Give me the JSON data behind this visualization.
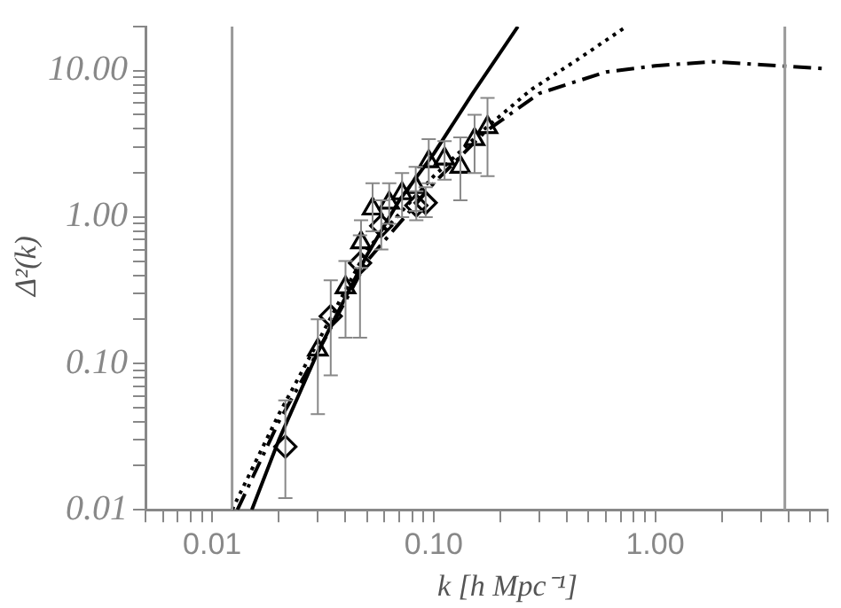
{
  "chart_data": {
    "type": "scatter",
    "xlabel": "k [h Mpc⁻¹]",
    "ylabel": "Δ²(k)",
    "log": "xy",
    "grid": false,
    "legend": false,
    "xlim": [
      0.005,
      6
    ],
    "ylim": [
      0.01,
      20
    ],
    "xticks": [
      {
        "value": 0.005,
        "label": null
      },
      {
        "value": 0.006,
        "label": null
      },
      {
        "value": 0.007,
        "label": null
      },
      {
        "value": 0.008,
        "label": null
      },
      {
        "value": 0.009,
        "label": null
      },
      {
        "value": 0.01,
        "label": "0.01"
      },
      {
        "value": 0.02,
        "label": null
      },
      {
        "value": 0.03,
        "label": null
      },
      {
        "value": 0.04,
        "label": null
      },
      {
        "value": 0.05,
        "label": null
      },
      {
        "value": 0.06,
        "label": null
      },
      {
        "value": 0.07,
        "label": null
      },
      {
        "value": 0.08,
        "label": null
      },
      {
        "value": 0.09,
        "label": null
      },
      {
        "value": 0.1,
        "label": "0.10"
      },
      {
        "value": 0.2,
        "label": null
      },
      {
        "value": 0.3,
        "label": null
      },
      {
        "value": 0.4,
        "label": null
      },
      {
        "value": 0.5,
        "label": null
      },
      {
        "value": 0.6,
        "label": null
      },
      {
        "value": 0.7,
        "label": null
      },
      {
        "value": 0.8,
        "label": null
      },
      {
        "value": 0.9,
        "label": null
      },
      {
        "value": 1,
        "label": "1.00"
      },
      {
        "value": 2,
        "label": null
      },
      {
        "value": 3,
        "label": null
      },
      {
        "value": 4,
        "label": null
      },
      {
        "value": 5,
        "label": null
      },
      {
        "value": 6,
        "label": null
      }
    ],
    "yticks": [
      {
        "value": 0.01,
        "label": "0.01"
      },
      {
        "value": 0.02,
        "label": null
      },
      {
        "value": 0.03,
        "label": null
      },
      {
        "value": 0.04,
        "label": null
      },
      {
        "value": 0.05,
        "label": null
      },
      {
        "value": 0.06,
        "label": null
      },
      {
        "value": 0.07,
        "label": null
      },
      {
        "value": 0.08,
        "label": null
      },
      {
        "value": 0.09,
        "label": null
      },
      {
        "value": 0.1,
        "label": "0.10"
      },
      {
        "value": 0.2,
        "label": null
      },
      {
        "value": 0.3,
        "label": null
      },
      {
        "value": 0.4,
        "label": null
      },
      {
        "value": 0.5,
        "label": null
      },
      {
        "value": 0.6,
        "label": null
      },
      {
        "value": 0.7,
        "label": null
      },
      {
        "value": 0.8,
        "label": null
      },
      {
        "value": 0.9,
        "label": null
      },
      {
        "value": 1,
        "label": "1.00"
      },
      {
        "value": 2,
        "label": null
      },
      {
        "value": 3,
        "label": null
      },
      {
        "value": 4,
        "label": null
      },
      {
        "value": 5,
        "label": null
      },
      {
        "value": 6,
        "label": null
      },
      {
        "value": 7,
        "label": null
      },
      {
        "value": 8,
        "label": null
      },
      {
        "value": 9,
        "label": null
      },
      {
        "value": 10,
        "label": "10.00"
      },
      {
        "value": 20,
        "label": null
      }
    ],
    "ref_lines": [
      {
        "axis": "x",
        "value": 0.0123,
        "color": "#999999"
      },
      {
        "axis": "x",
        "value": 3.85,
        "color": "#999999"
      }
    ],
    "series": [
      {
        "type": "line",
        "color": "#000000",
        "marker": "none",
        "line_style": "solid",
        "x": [
          0.0151,
          0.02,
          0.03,
          0.05,
          0.07,
          0.1,
          0.15,
          0.24
        ],
        "values": [
          0.01,
          0.03,
          0.12,
          0.55,
          1.3,
          2.7,
          7,
          20
        ]
      },
      {
        "type": "line",
        "color": "#000000",
        "marker": "none",
        "line_style": "dotted",
        "x": [
          0.0123,
          0.02,
          0.03,
          0.05,
          0.1,
          0.17,
          0.275,
          0.45,
          0.74
        ],
        "values": [
          0.01,
          0.045,
          0.14,
          0.6,
          1.9,
          4,
          7.4,
          12,
          20
        ]
      },
      {
        "type": "line",
        "color": "#000000",
        "marker": "none",
        "line_style": "dashed",
        "x": [
          0.013,
          0.02,
          0.03,
          0.05,
          0.1,
          0.17,
          0.3,
          0.6,
          1,
          1.83,
          3,
          6
        ],
        "values": [
          0.01,
          0.04,
          0.12,
          0.5,
          1.7,
          3.8,
          7,
          9.8,
          10.8,
          11.5,
          11,
          10.3
        ]
      },
      {
        "color": "#000000",
        "marker": "diamond",
        "x": [
          0.0214,
          0.0343,
          0.0465,
          0.058,
          0.0835,
          0.092
        ],
        "values": [
          0.027,
          0.21,
          0.485,
          0.87,
          1.2,
          1.25
        ],
        "errors": [
          [
            0.012,
            0.056
          ],
          [
            0.083,
            0.37
          ],
          [
            0.15,
            0.75
          ],
          [
            0.6,
            1.3
          ],
          [
            0.95,
            1.5
          ],
          [
            1.0,
            1.6
          ]
        ]
      },
      {
        "color": "#000000",
        "marker": "triangle",
        "x": [
          0.03,
          0.04,
          0.047,
          0.053,
          0.063,
          0.072,
          0.083,
          0.095,
          0.112,
          0.132,
          0.153,
          0.175
        ],
        "values": [
          0.124,
          0.33,
          0.67,
          1.14,
          1.25,
          1.45,
          1.6,
          2.4,
          2.5,
          2.2,
          3.4,
          4.1
        ],
        "errors": [
          [
            0.045,
            0.2
          ],
          [
            0.15,
            0.5
          ],
          [
            0.45,
            0.95
          ],
          [
            0.8,
            1.7
          ],
          [
            0.9,
            1.7
          ],
          [
            1.0,
            2.0
          ],
          [
            1.1,
            2.2
          ],
          [
            1.7,
            3.4
          ],
          [
            1.8,
            3.3
          ],
          [
            1.3,
            3.5
          ],
          [
            2.0,
            5.0
          ],
          [
            1.9,
            6.5
          ]
        ]
      }
    ]
  }
}
